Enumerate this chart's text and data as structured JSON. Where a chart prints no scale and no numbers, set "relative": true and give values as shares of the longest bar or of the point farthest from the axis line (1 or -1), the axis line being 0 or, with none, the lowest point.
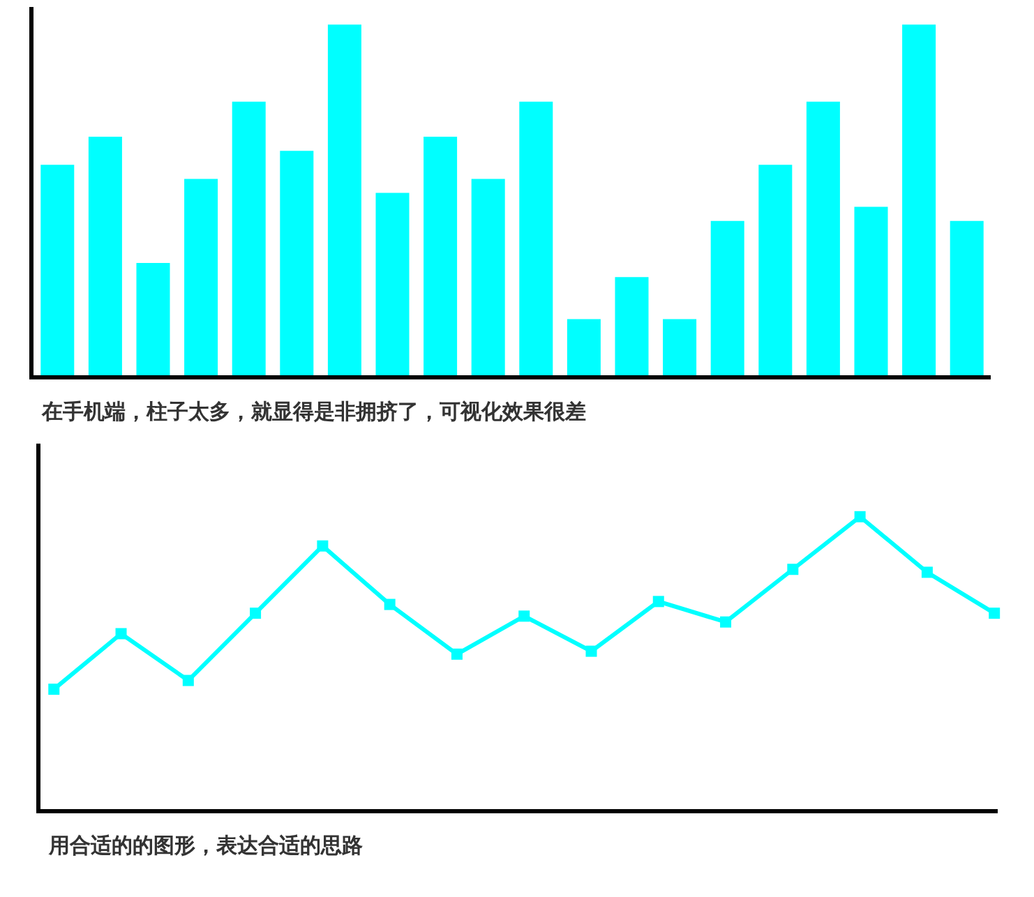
{
  "chart_data": [
    {
      "type": "bar",
      "relative": true,
      "categories": [
        null,
        null,
        null,
        null,
        null,
        null,
        null,
        null,
        null,
        null,
        null,
        null,
        null,
        null,
        null,
        null,
        null,
        null,
        null,
        null
      ],
      "values": [
        0.6,
        0.68,
        0.32,
        0.56,
        0.78,
        0.64,
        1,
        0.52,
        0.68,
        0.56,
        0.78,
        0.16,
        0.28,
        0.16,
        0.44,
        0.6,
        0.78,
        0.48,
        1,
        0.44
      ],
      "color": "#00ffff",
      "annotations": [
        "在手机端，柱子太多，就显得是非拥挤了，可视化效果很差"
      ]
    },
    {
      "type": "line",
      "relative": true,
      "categories": [
        null,
        null,
        null,
        null,
        null,
        null,
        null,
        null,
        null,
        null,
        null,
        null,
        null,
        null,
        null
      ],
      "values": [
        0.41,
        0.6,
        0.44,
        0.67,
        0.9,
        0.7,
        0.53,
        0.66,
        0.54,
        0.71,
        0.64,
        0.82,
        1,
        0.81,
        0.67
      ],
      "color": "#00ffff",
      "marker": "square",
      "line_style": "solid",
      "annotations": [
        "用合适的的图形，表达合适的思路"
      ]
    }
  ]
}
